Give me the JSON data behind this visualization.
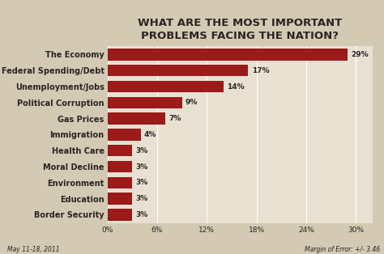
{
  "title": "WHAT ARE THE MOST IMPORTANT\nPROBLEMS FACING THE NATION?",
  "categories": [
    "Border Security",
    "Education",
    "Environment",
    "Moral Decline",
    "Health Care",
    "Immigration",
    "Gas Prices",
    "Political Corruption",
    "Unemployment/Jobs",
    "Federal Spending/Debt",
    "The Economy"
  ],
  "values": [
    3,
    3,
    3,
    3,
    3,
    4,
    7,
    9,
    14,
    17,
    29
  ],
  "bar_color": "#9B1A1A",
  "background_color": "#D4C9B2",
  "plot_bg_color": "#E8E0D0",
  "text_color": "#2B2424",
  "title_fontsize": 9.5,
  "label_fontsize": 7.0,
  "tick_fontsize": 6.5,
  "value_fontsize": 6.5,
  "xlim": [
    0,
    32
  ],
  "xticks": [
    0,
    6,
    12,
    18,
    24,
    30
  ],
  "xtick_labels": [
    "0%",
    "6%",
    "12%",
    "18%",
    "24%",
    "30%"
  ],
  "footnote_left": "May 11-18, 2011",
  "footnote_right": "Margin of Error: +/- 3.46",
  "footnote_fontsize": 5.5
}
